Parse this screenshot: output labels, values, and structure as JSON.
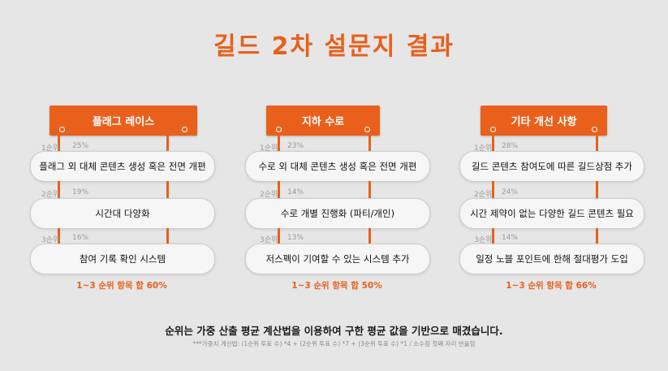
{
  "title": "길드 2차 설문지 결과",
  "columns": [
    {
      "banner": "플래그 레이스",
      "items": [
        {
          "rank": "1순위",
          "pct": "25%",
          "text": "플래그 외 대체 콘텐츠 생성 혹은 전면 개편"
        },
        {
          "rank": "2순위",
          "pct": "19%",
          "text": "시간대 다양화"
        },
        {
          "rank": "3순위",
          "pct": "16%",
          "text": "참여 기록 확인 시스템"
        }
      ],
      "sum": "1~3 순위 항목 합 60%"
    },
    {
      "banner": "지하 수로",
      "items": [
        {
          "rank": "1순위",
          "pct": "23%",
          "text": "수로 외 대체 콘텐츠 생성 혹은 전면 개편"
        },
        {
          "rank": "2순위",
          "pct": "14%",
          "text": "수로 개별 진행화 (파티/개인)"
        },
        {
          "rank": "3순위",
          "pct": "13%",
          "text": "저스펙이 기여할 수 있는 시스템 추가"
        }
      ],
      "sum": "1~3 순위 항목 합 50%"
    },
    {
      "banner": "기타 개선 사항",
      "items": [
        {
          "rank": "1순위",
          "pct": "28%",
          "text": "길드 콘텐츠 참여도에 따른 길드상점 추가"
        },
        {
          "rank": "2순위",
          "pct": "24%",
          "text": "시간 제약이 없는 다양한 길드 콘텐츠 필요"
        },
        {
          "rank": "3순위",
          "pct": "14%",
          "text": "일정 노블 포인트에 한해 절대평가 도입"
        }
      ],
      "sum": "1~3 순위 항목 합 66%"
    }
  ],
  "footnote": "순위는 가중 산출 평균 계산법을 이용하여 구한 평균 값을 기반으로 매겼습니다.",
  "footnote_small": "***가중치 계산법: (1순위 투표 수) *4 + (2순위 투표 수) *7 + (3순위 투표 수) *1  /  소수점 첫째 자리 반올림",
  "colors": {
    "accent": "#e8601c",
    "background": "#e6e6e6"
  }
}
